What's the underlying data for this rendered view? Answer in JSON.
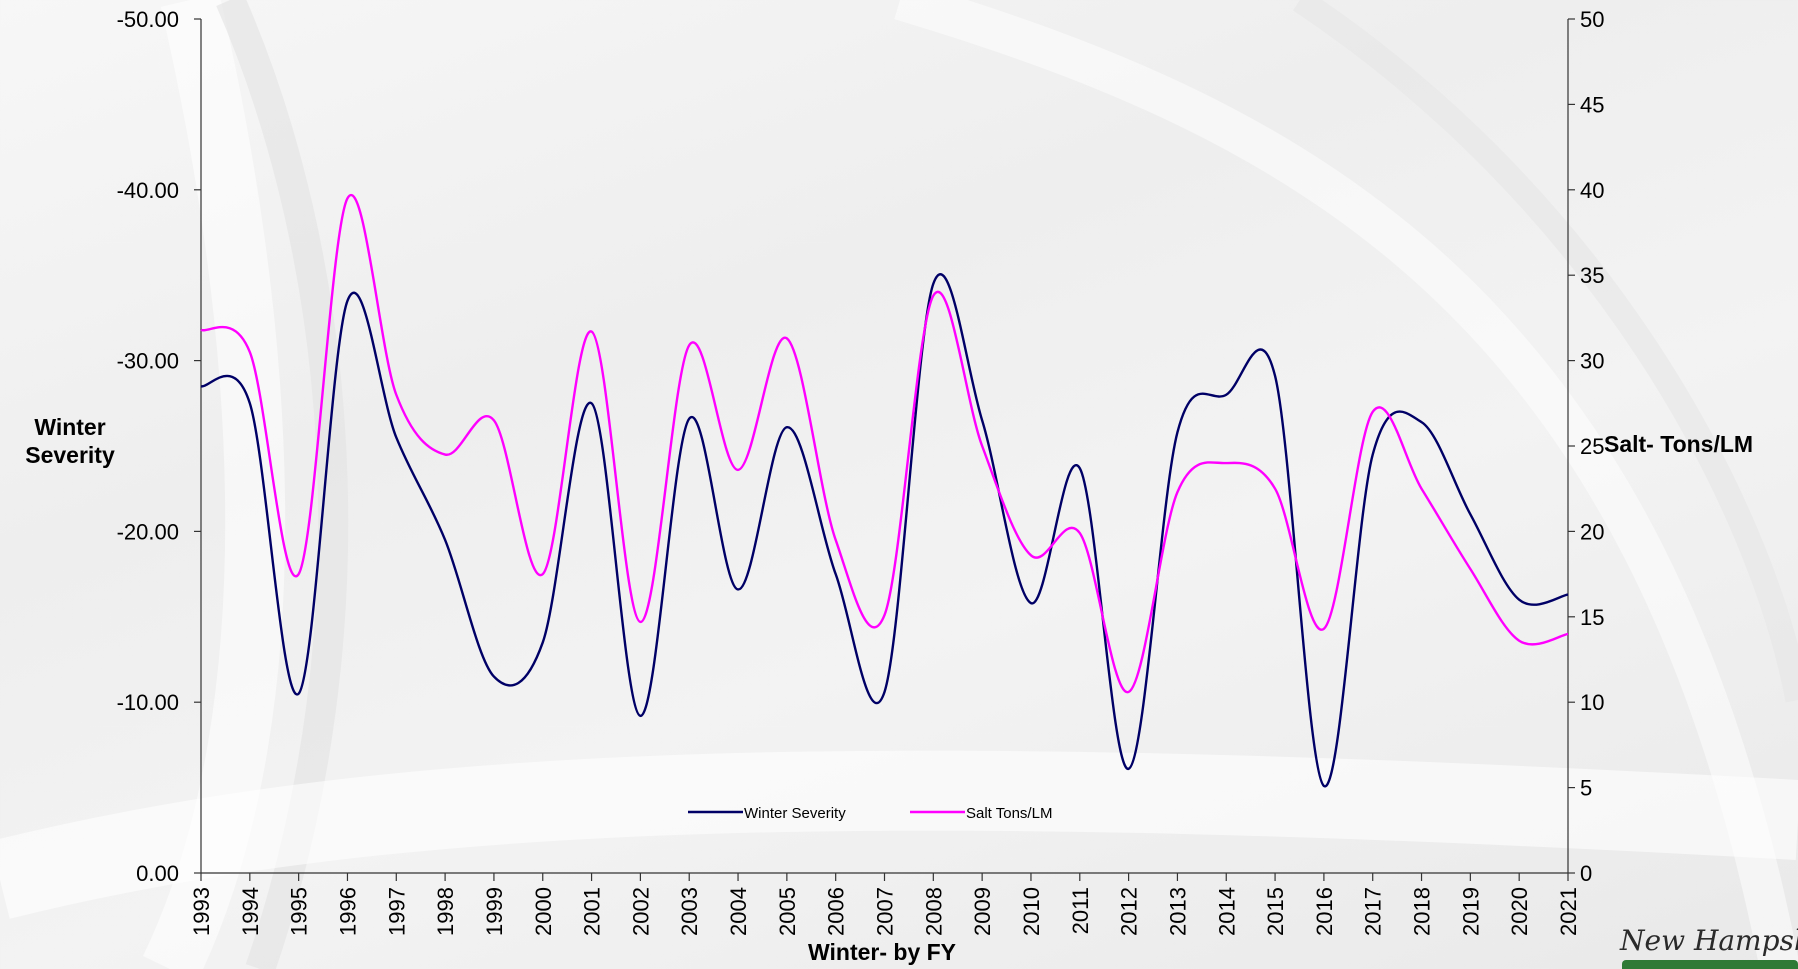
{
  "chart_data": {
    "type": "line",
    "xlabel": "Winter- by FY",
    "ylabel": "Winter Severity",
    "y2label": "Salt- Tons/LM",
    "x": [
      1993,
      1994,
      1995,
      1996,
      1997,
      1998,
      1999,
      2000,
      2001,
      2002,
      2003,
      2004,
      2005,
      2006,
      2007,
      2008,
      2009,
      2010,
      2011,
      2012,
      2013,
      2014,
      2015,
      2016,
      2017,
      2018,
      2019,
      2020,
      2021
    ],
    "ylim": [
      0,
      -50
    ],
    "y_ticks": [
      "-50.00",
      "-40.00",
      "-30.00",
      "-20.00",
      "-10.00",
      "0.00"
    ],
    "y_tick_values": [
      -50,
      -40,
      -30,
      -20,
      -10,
      0
    ],
    "y2lim": [
      0,
      50
    ],
    "y2_ticks": [
      "50",
      "45",
      "40",
      "35",
      "30",
      "25",
      "20",
      "15",
      "10",
      "5",
      "0"
    ],
    "y2_tick_values": [
      50,
      45,
      40,
      35,
      30,
      25,
      20,
      15,
      10,
      5,
      0
    ],
    "series": [
      {
        "name": "Winter Severity",
        "color": "#000066",
        "axis": "left",
        "values": [
          -28.5,
          -27.5,
          -10.5,
          -33.5,
          -25.5,
          -19.5,
          -11.5,
          -13.5,
          -27.5,
          -9.2,
          -26.6,
          -16.6,
          -26.1,
          -17.5,
          -10.6,
          -34.5,
          -26.5,
          -15.8,
          -23.7,
          -6.1,
          -25.8,
          -28.0,
          -29.1,
          -5.1,
          -24.5,
          -26.4,
          -21.0,
          -16.0,
          -16.3
        ]
      },
      {
        "name": "Salt  Tons/LM",
        "color": "#ff00ff",
        "axis": "right",
        "values": [
          31.8,
          30.5,
          17.5,
          39.5,
          28.0,
          24.5,
          26.5,
          17.5,
          31.7,
          14.7,
          30.9,
          23.6,
          31.3,
          19.5,
          15.1,
          33.8,
          25.0,
          18.6,
          19.9,
          10.6,
          22.3,
          24.0,
          22.5,
          14.3,
          27.0,
          22.5,
          17.8,
          13.6,
          14.0
        ]
      }
    ],
    "legend_position": "bottom-center",
    "grid": false
  },
  "logo_text": "New Hampshire"
}
